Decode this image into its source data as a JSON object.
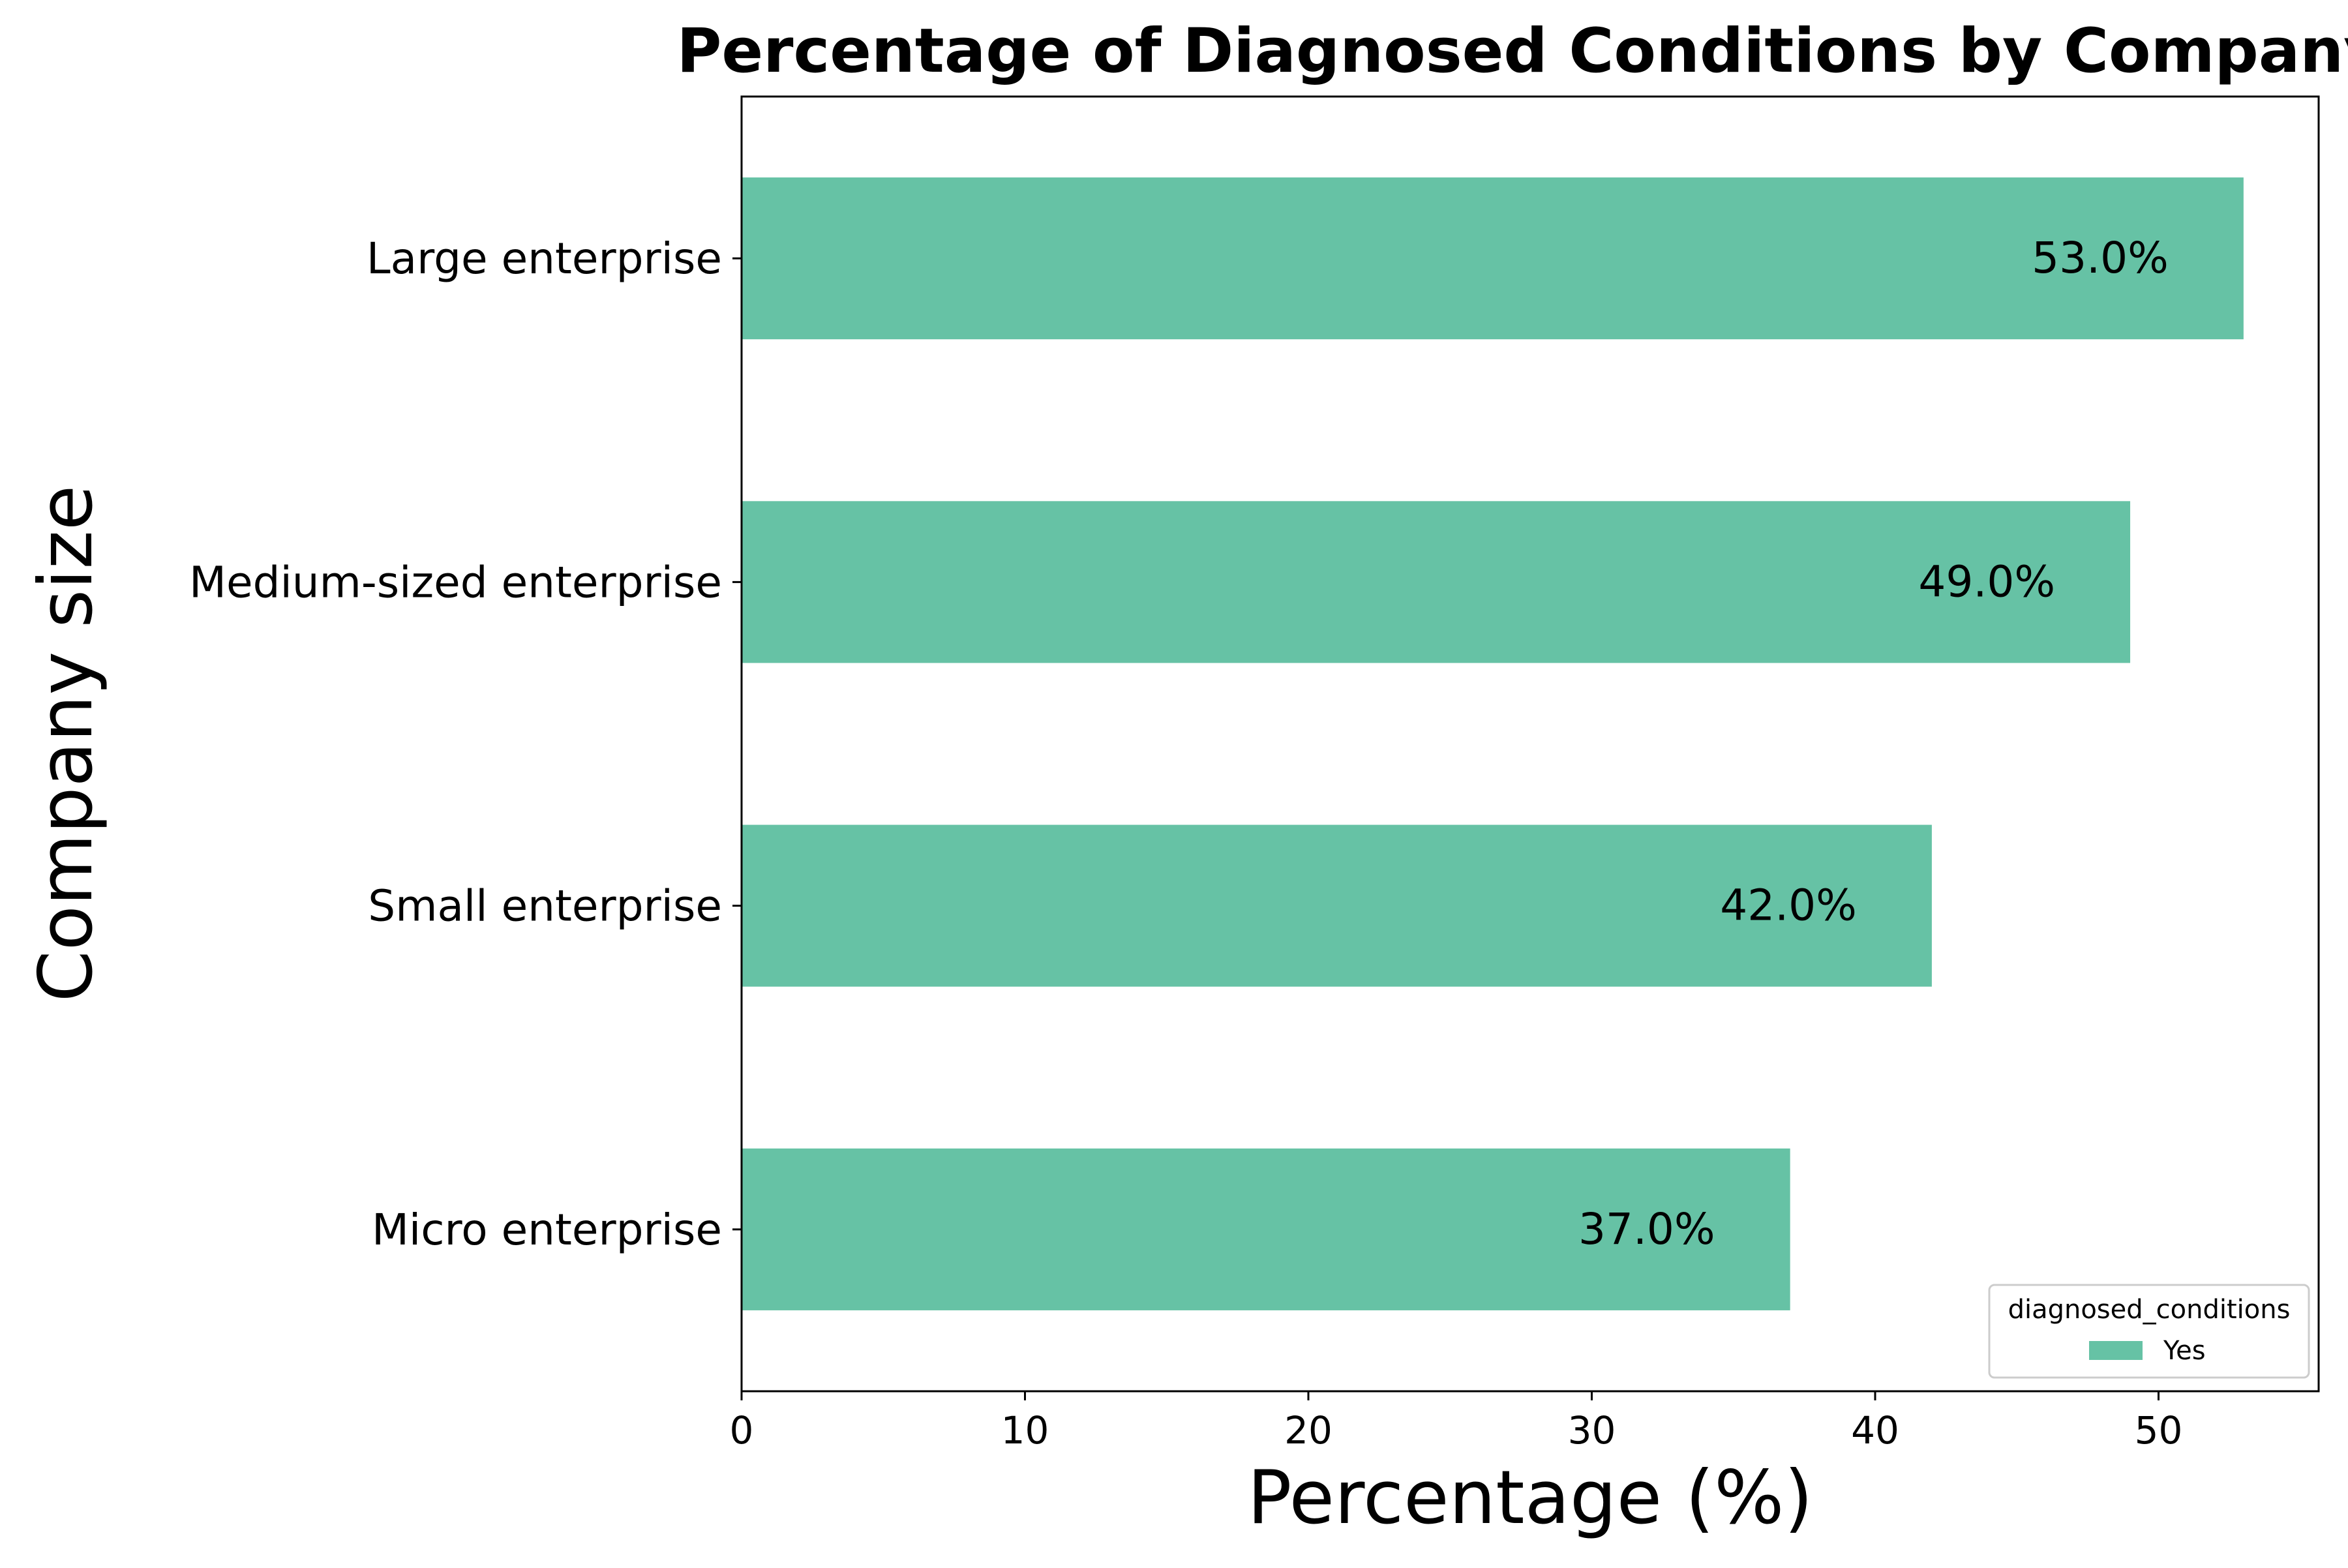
{
  "chart_data": {
    "type": "bar",
    "orientation": "horizontal",
    "title": "Percentage of Diagnosed Conditions by Company",
    "xlabel": "Percentage (%)",
    "ylabel": "Company size",
    "categories": [
      "Micro enterprise",
      "Small enterprise",
      "Medium-sized enterprise",
      "Large enterprise"
    ],
    "series": [
      {
        "name": "Yes",
        "values": [
          37.0,
          42.0,
          49.0,
          53.0
        ],
        "color": "#66c2a5"
      }
    ],
    "data_labels": [
      "37.0%",
      "42.0%",
      "49.0%",
      "53.0%"
    ],
    "xlim": [
      0,
      55.65
    ],
    "xticks": [
      0,
      10,
      20,
      30,
      40,
      50
    ],
    "xtick_labels": [
      "0",
      "10",
      "20",
      "30",
      "40",
      "50"
    ],
    "grid": false,
    "legend": {
      "title": "diagnosed_conditions",
      "placement": "lower-right",
      "entries": [
        "Yes"
      ]
    }
  }
}
